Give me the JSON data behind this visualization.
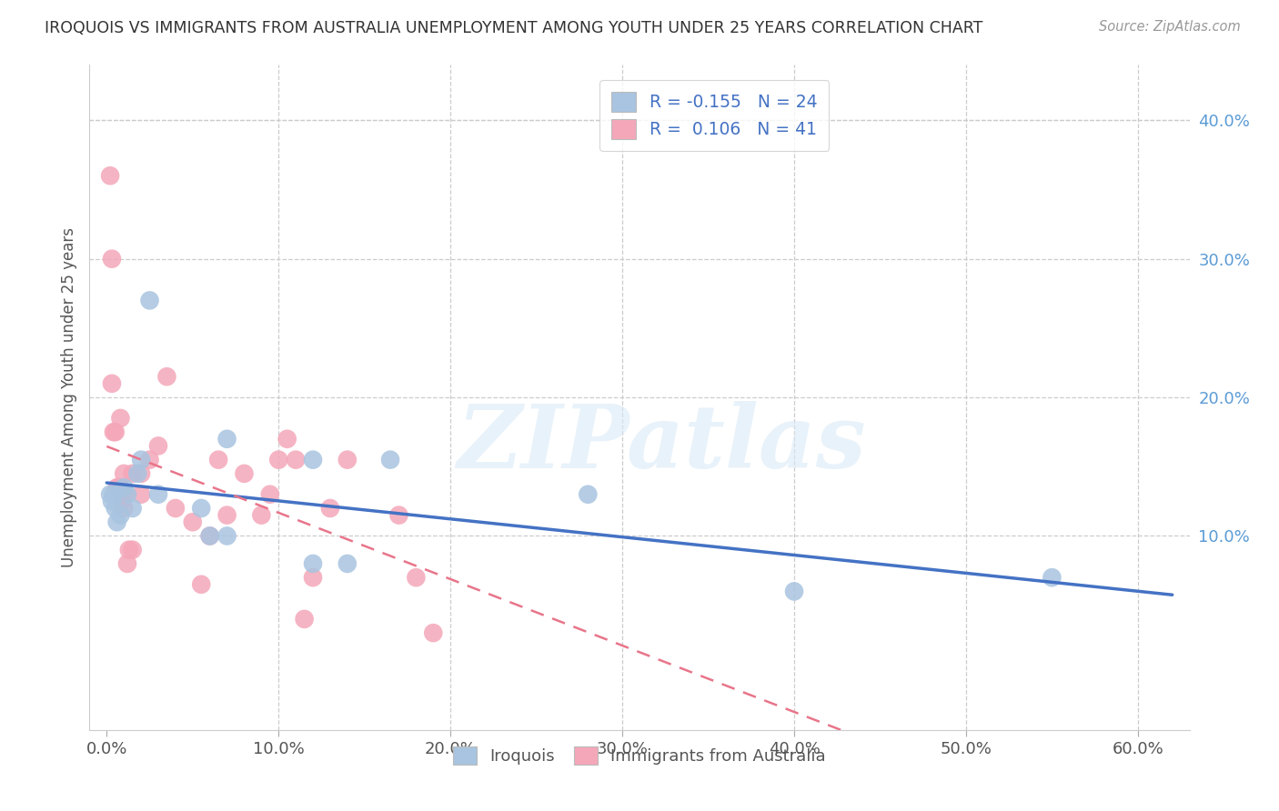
{
  "title": "IROQUOIS VS IMMIGRANTS FROM AUSTRALIA UNEMPLOYMENT AMONG YOUTH UNDER 25 YEARS CORRELATION CHART",
  "source": "Source: ZipAtlas.com",
  "ylabel": "Unemployment Among Youth under 25 years",
  "xlabel_ticks": [
    "0.0%",
    "10.0%",
    "20.0%",
    "30.0%",
    "40.0%",
    "50.0%",
    "60.0%"
  ],
  "xlabel_vals": [
    0.0,
    0.1,
    0.2,
    0.3,
    0.4,
    0.5,
    0.6
  ],
  "ylabel_left_ticks": [],
  "ylabel_left_vals": [],
  "ylabel_right_ticks": [
    "40.0%",
    "30.0%",
    "20.0%",
    "10.0%"
  ],
  "ylabel_right_vals": [
    0.4,
    0.3,
    0.2,
    0.1
  ],
  "xlim": [
    -0.01,
    0.63
  ],
  "ylim": [
    -0.04,
    0.44
  ],
  "watermark": "ZIPatlas",
  "legend1_label": "R = -0.155   N = 24",
  "legend2_label": "R =  0.106   N = 41",
  "series1_name": "Iroquois",
  "series2_name": "Immigrants from Australia",
  "series1_color": "#a8c4e0",
  "series2_color": "#f4a7b9",
  "series1_line_color": "#4472c4",
  "series2_line_color": "#e8758a",
  "iroquois_x": [
    0.002,
    0.003,
    0.004,
    0.005,
    0.006,
    0.008,
    0.01,
    0.012,
    0.015,
    0.018,
    0.02,
    0.025,
    0.03,
    0.055,
    0.06,
    0.07,
    0.07,
    0.12,
    0.12,
    0.14,
    0.165,
    0.28,
    0.4,
    0.55
  ],
  "iroquois_y": [
    0.13,
    0.125,
    0.13,
    0.12,
    0.11,
    0.115,
    0.135,
    0.13,
    0.12,
    0.145,
    0.155,
    0.27,
    0.13,
    0.12,
    0.1,
    0.1,
    0.17,
    0.155,
    0.08,
    0.08,
    0.155,
    0.13,
    0.06,
    0.07
  ],
  "australia_x": [
    0.002,
    0.003,
    0.003,
    0.004,
    0.005,
    0.006,
    0.007,
    0.008,
    0.008,
    0.009,
    0.01,
    0.01,
    0.01,
    0.012,
    0.013,
    0.015,
    0.015,
    0.02,
    0.02,
    0.025,
    0.03,
    0.035,
    0.04,
    0.05,
    0.055,
    0.06,
    0.065,
    0.07,
    0.08,
    0.09,
    0.095,
    0.1,
    0.105,
    0.11,
    0.115,
    0.12,
    0.13,
    0.14,
    0.17,
    0.18,
    0.19
  ],
  "australia_y": [
    0.36,
    0.3,
    0.21,
    0.175,
    0.175,
    0.135,
    0.135,
    0.185,
    0.135,
    0.125,
    0.145,
    0.13,
    0.12,
    0.08,
    0.09,
    0.145,
    0.09,
    0.145,
    0.13,
    0.155,
    0.165,
    0.215,
    0.12,
    0.11,
    0.065,
    0.1,
    0.155,
    0.115,
    0.145,
    0.115,
    0.13,
    0.155,
    0.17,
    0.155,
    0.04,
    0.07,
    0.12,
    0.155,
    0.115,
    0.07,
    0.03
  ],
  "background_color": "#ffffff",
  "grid_color": "#cccccc",
  "trend_x_start": 0.0,
  "trend_x_end": 0.62
}
